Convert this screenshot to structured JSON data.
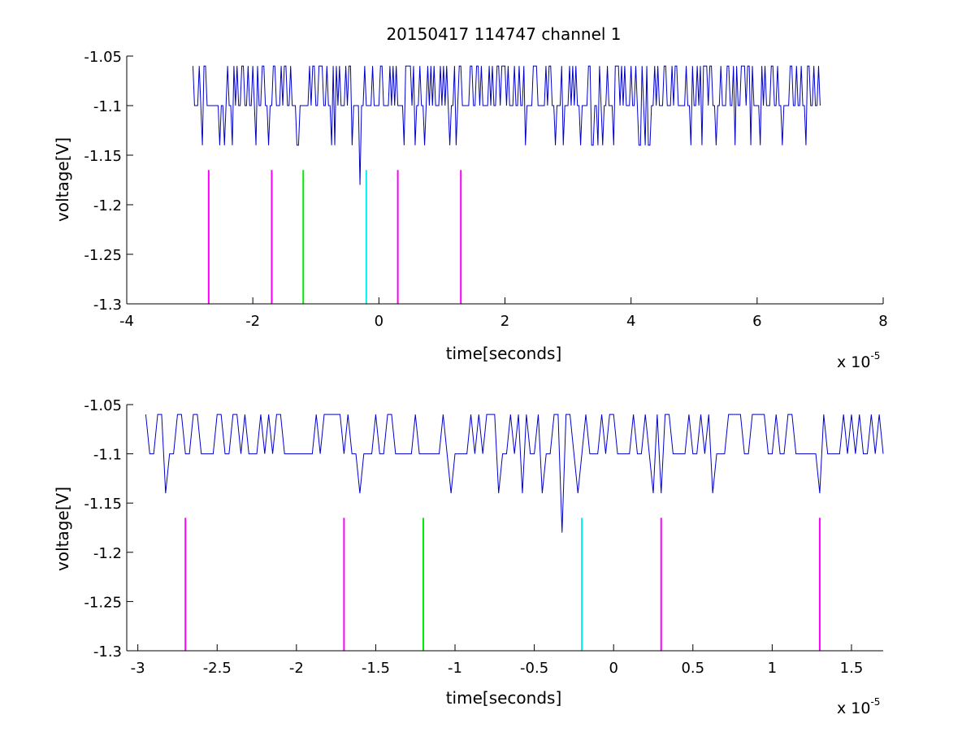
{
  "colors": {
    "signal": "#0000cc",
    "marker_magenta": "#ff00ff",
    "marker_green": "#00ee00",
    "marker_cyan": "#00eeee",
    "axes": "#000000",
    "background": "#ffffff"
  },
  "chart_data": [
    {
      "type": "line",
      "title": "20150417 114747 channel 1",
      "xlabel": "time[seconds]",
      "ylabel": "voltage[V]",
      "x_multiplier_base": "x 10",
      "x_multiplier_exponent": "-5",
      "xlim": [
        -4,
        8
      ],
      "ylim": [
        -1.3,
        -1.05
      ],
      "xticks": [
        -4,
        -2,
        0,
        2,
        4,
        6,
        8
      ],
      "xtick_labels": [
        "-4",
        "-2",
        "0",
        "2",
        "4",
        "6",
        "8"
      ],
      "yticks": [
        -1.3,
        -1.25,
        -1.2,
        -1.15,
        -1.1,
        -1.05
      ],
      "ytick_labels": [
        "-1.3",
        "-1.25",
        "-1.2",
        "-1.15",
        "-1.1",
        "-1.05"
      ],
      "grid": false,
      "series": [
        {
          "kind": "noisy-quantized-signal",
          "color_key": "signal",
          "x_range": [
            -2.95,
            7.0
          ],
          "baseline": -1.1,
          "upper_level": -1.06,
          "lower_level": -1.14,
          "spike": {
            "x": -0.3,
            "y": -1.18
          }
        }
      ],
      "markers": [
        {
          "x": -2.7,
          "color_key": "marker_magenta",
          "y_bottom": -1.3,
          "y_top": -1.165
        },
        {
          "x": -1.7,
          "color_key": "marker_magenta",
          "y_bottom": -1.3,
          "y_top": -1.165
        },
        {
          "x": -1.2,
          "color_key": "marker_green",
          "y_bottom": -1.3,
          "y_top": -1.165
        },
        {
          "x": -0.2,
          "color_key": "marker_cyan",
          "y_bottom": -1.3,
          "y_top": -1.165
        },
        {
          "x": 0.3,
          "color_key": "marker_magenta",
          "y_bottom": -1.3,
          "y_top": -1.165
        },
        {
          "x": 1.3,
          "color_key": "marker_magenta",
          "y_bottom": -1.3,
          "y_top": -1.165
        }
      ]
    },
    {
      "type": "line",
      "title": "",
      "xlabel": "time[seconds]",
      "ylabel": "voltage[V]",
      "x_multiplier_base": "x 10",
      "x_multiplier_exponent": "-5",
      "xlim": [
        -3.07,
        1.7
      ],
      "ylim": [
        -1.3,
        -1.05
      ],
      "xticks": [
        -3,
        -2.5,
        -2,
        -1.5,
        -1,
        -0.5,
        0,
        0.5,
        1,
        1.5
      ],
      "xtick_labels": [
        "-3",
        "-2.5",
        "-2",
        "-1.5",
        "-1",
        "-0.5",
        "0",
        "0.5",
        "1",
        "1.5"
      ],
      "yticks": [
        -1.3,
        -1.25,
        -1.2,
        -1.15,
        -1.1,
        -1.05
      ],
      "ytick_labels": [
        "-1.3",
        "-1.25",
        "-1.2",
        "-1.15",
        "-1.1",
        "-1.05"
      ],
      "grid": false,
      "series": [
        {
          "kind": "noisy-quantized-signal",
          "color_key": "signal",
          "x_range": [
            -2.95,
            1.7
          ],
          "baseline": -1.1,
          "upper_level": -1.06,
          "lower_level": -1.14,
          "spike": {
            "x": -0.33,
            "y": -1.18
          }
        }
      ],
      "markers": [
        {
          "x": -2.7,
          "color_key": "marker_magenta",
          "y_bottom": -1.3,
          "y_top": -1.165
        },
        {
          "x": -1.7,
          "color_key": "marker_magenta",
          "y_bottom": -1.3,
          "y_top": -1.165
        },
        {
          "x": -1.2,
          "color_key": "marker_green",
          "y_bottom": -1.3,
          "y_top": -1.165
        },
        {
          "x": -0.2,
          "color_key": "marker_cyan",
          "y_bottom": -1.3,
          "y_top": -1.165
        },
        {
          "x": 0.3,
          "color_key": "marker_magenta",
          "y_bottom": -1.3,
          "y_top": -1.165
        },
        {
          "x": 1.3,
          "color_key": "marker_magenta",
          "y_bottom": -1.3,
          "y_top": -1.165
        }
      ]
    }
  ]
}
